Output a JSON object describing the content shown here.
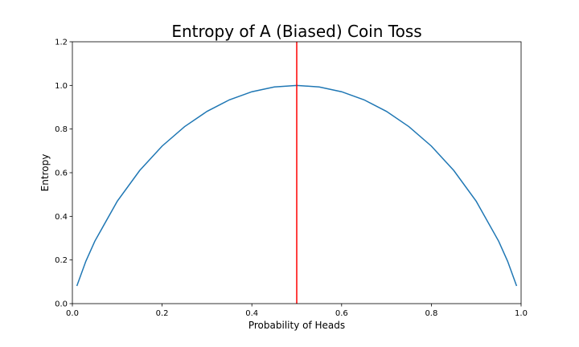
{
  "chart_data": {
    "type": "line",
    "title": "Entropy of A (Biased) Coin Toss",
    "xlabel": "Probability of Heads",
    "ylabel": "Entropy",
    "xlim": [
      0.0,
      1.0
    ],
    "ylim": [
      0.0,
      1.2
    ],
    "xticks": [
      "0.0",
      "0.2",
      "0.4",
      "0.6",
      "0.8",
      "1.0"
    ],
    "yticks": [
      "0.0",
      "0.2",
      "0.4",
      "0.6",
      "0.8",
      "1.0",
      "1.2"
    ],
    "grid": false,
    "series": [
      {
        "color": "#1f77b4",
        "x": [
          0.01,
          0.03,
          0.05,
          0.1,
          0.15,
          0.2,
          0.25,
          0.3,
          0.35,
          0.4,
          0.45,
          0.5,
          0.55,
          0.6,
          0.65,
          0.7,
          0.75,
          0.8,
          0.85,
          0.9,
          0.95,
          0.97,
          0.99
        ],
        "y": [
          0.081,
          0.194,
          0.286,
          0.469,
          0.61,
          0.722,
          0.811,
          0.881,
          0.934,
          0.971,
          0.993,
          1.0,
          0.993,
          0.971,
          0.934,
          0.881,
          0.811,
          0.722,
          0.61,
          0.469,
          0.286,
          0.194,
          0.081
        ]
      }
    ],
    "vlines": [
      {
        "x": 0.5,
        "color": "#ff0000"
      }
    ]
  }
}
